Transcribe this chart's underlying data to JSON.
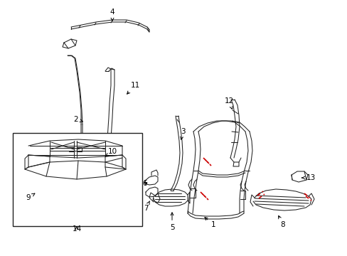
{
  "background": "#ffffff",
  "line_color": "#222222",
  "red_color": "#cc0000",
  "label_fontsize": 7.5,
  "figsize": [
    4.89,
    3.6
  ],
  "dpi": 100,
  "xlim": [
    0,
    489
  ],
  "ylim": [
    0,
    360
  ]
}
